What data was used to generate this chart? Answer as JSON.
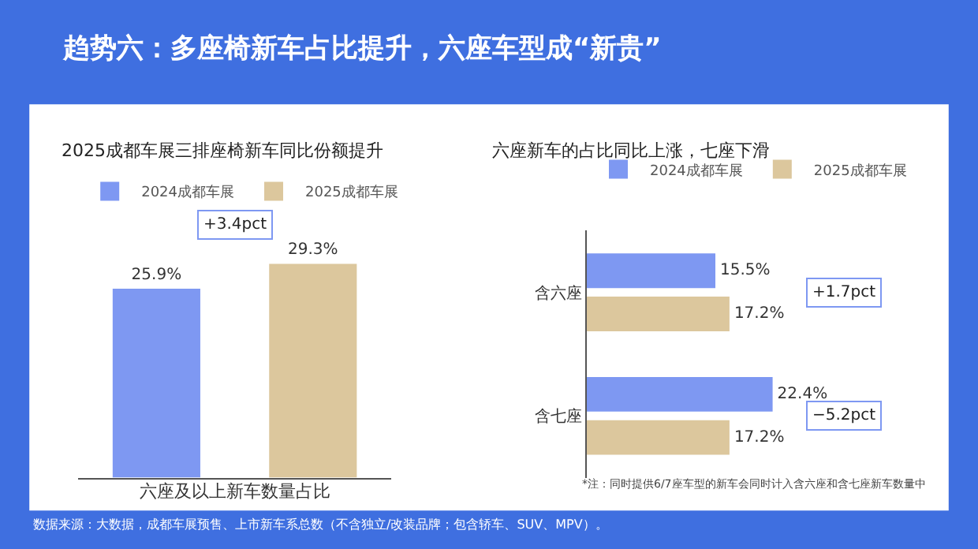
{
  "chart_data": [
    {
      "type": "bar",
      "title": "趋势六：多座椅新车占比提升，六座车型成“新贵”",
      "subtitle": "2025成都车展三排座椅新车同比份额提升",
      "xlabel": "六座及以上新车数量占比",
      "categories": [
        null,
        null
      ],
      "stacked": true,
      "series": [
        {
          "name": "2024成都车展",
          "color": "#7e98f2",
          "values": [
            25.9,
            null
          ],
          "value_labels": [
            "25.9%",
            null
          ]
        },
        {
          "name": "2025成都车展",
          "color": "#dcc79d",
          "values": [
            null,
            29.3
          ],
          "value_labels": [
            null,
            "29.3%"
          ]
        }
      ],
      "annotations": [
        "+3.4pct"
      ],
      "legend": "top"
    },
    {
      "type": "bar",
      "orientation": "horizontal",
      "title": "六座新车的占比同比上涨，七座下滑",
      "categories": [
        "含六座",
        "含七座"
      ],
      "series": [
        {
          "name": "2024成都车展",
          "color": "#7e98f2",
          "values": [
            15.5,
            22.4
          ],
          "value_labels": [
            "15.5%",
            "22.4%"
          ]
        },
        {
          "name": "2025成都车展",
          "color": "#dcc79d",
          "values": [
            17.2,
            17.2
          ],
          "value_labels": [
            "17.2%",
            "17.2%"
          ]
        }
      ],
      "annotations": [
        "+1.7pct",
        "−5.2pct",
        "*注：同时提供6/7座车型的新车会同时计入含六座和含七座新车数量中",
        "数据来源：大数据，成都车展预售、上市新车系总数（不含独立/改装品牌；包含轿车、SUV、MPV）。"
      ],
      "legend": "top"
    }
  ]
}
